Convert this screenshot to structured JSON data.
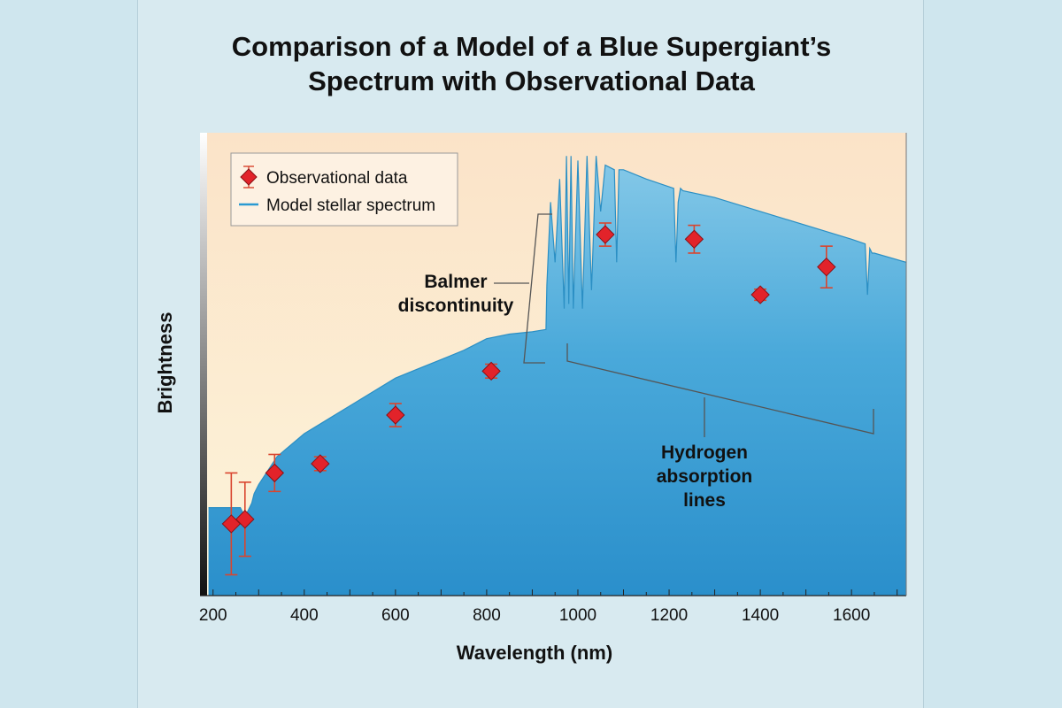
{
  "chart_data": {
    "type": "line",
    "title_lines": [
      "Comparison of a Model of a Blue Supergiant’s",
      "Spectrum with Observational Data"
    ],
    "xlabel": "Wavelength (nm)",
    "ylabel": "Brightness",
    "xlim": [
      185,
      1720
    ],
    "ylim": [
      0,
      1
    ],
    "x_ticks": [
      200,
      400,
      600,
      800,
      1000,
      1200,
      1400,
      1600
    ],
    "grid": false,
    "legend": {
      "position": "top-left",
      "entries": [
        {
          "label": "Observational data",
          "marker": "red-diamond-with-error-bar"
        },
        {
          "label": "Model stellar spectrum",
          "marker": "blue-line"
        }
      ]
    },
    "series": [
      {
        "name": "Model stellar spectrum",
        "kind": "area",
        "color": "#3aa0d3",
        "x": [
          190,
          260,
          270,
          285,
          290,
          300,
          340,
          400,
          450,
          500,
          550,
          600,
          650,
          700,
          750,
          800,
          850,
          900,
          930,
          932,
          940,
          950,
          960,
          970,
          975,
          980,
          985,
          990,
          1000,
          1010,
          1020,
          1030,
          1040,
          1050,
          1060,
          1080,
          1085,
          1090,
          1100,
          1150,
          1210,
          1215,
          1220,
          1225,
          1230,
          1300,
          1400,
          1500,
          1600,
          1630,
          1635,
          1640,
          1645,
          1650,
          1720
        ],
        "y": [
          0.19,
          0.19,
          0.17,
          0.2,
          0.22,
          0.24,
          0.3,
          0.35,
          0.38,
          0.41,
          0.44,
          0.47,
          0.49,
          0.51,
          0.53,
          0.555,
          0.565,
          0.57,
          0.575,
          0.67,
          0.85,
          0.72,
          0.9,
          0.62,
          0.95,
          0.63,
          0.95,
          0.62,
          0.94,
          0.62,
          0.95,
          0.66,
          0.95,
          0.83,
          0.93,
          0.92,
          0.72,
          0.92,
          0.92,
          0.9,
          0.88,
          0.72,
          0.85,
          0.88,
          0.875,
          0.86,
          0.83,
          0.8,
          0.77,
          0.76,
          0.65,
          0.75,
          0.74,
          0.74,
          0.72
        ]
      },
      {
        "name": "Observational data",
        "kind": "points-with-error-bars",
        "color": "#e2232a",
        "x": [
          240,
          270,
          335,
          435,
          600,
          810,
          1060,
          1255,
          1400,
          1545
        ],
        "y": [
          0.155,
          0.165,
          0.265,
          0.285,
          0.39,
          0.485,
          0.78,
          0.77,
          0.65,
          0.71
        ],
        "err": [
          0.11,
          0.08,
          0.04,
          0.015,
          0.025,
          0.015,
          0.025,
          0.03,
          0.012,
          0.045
        ]
      }
    ],
    "annotations": [
      {
        "text_lines": [
          "Balmer",
          "discontinuity"
        ],
        "target": "jump near 930 nm"
      },
      {
        "text_lines": [
          "Hydrogen",
          "absorption",
          "lines"
        ],
        "target": "dips from 980 to 1650 nm"
      }
    ]
  }
}
